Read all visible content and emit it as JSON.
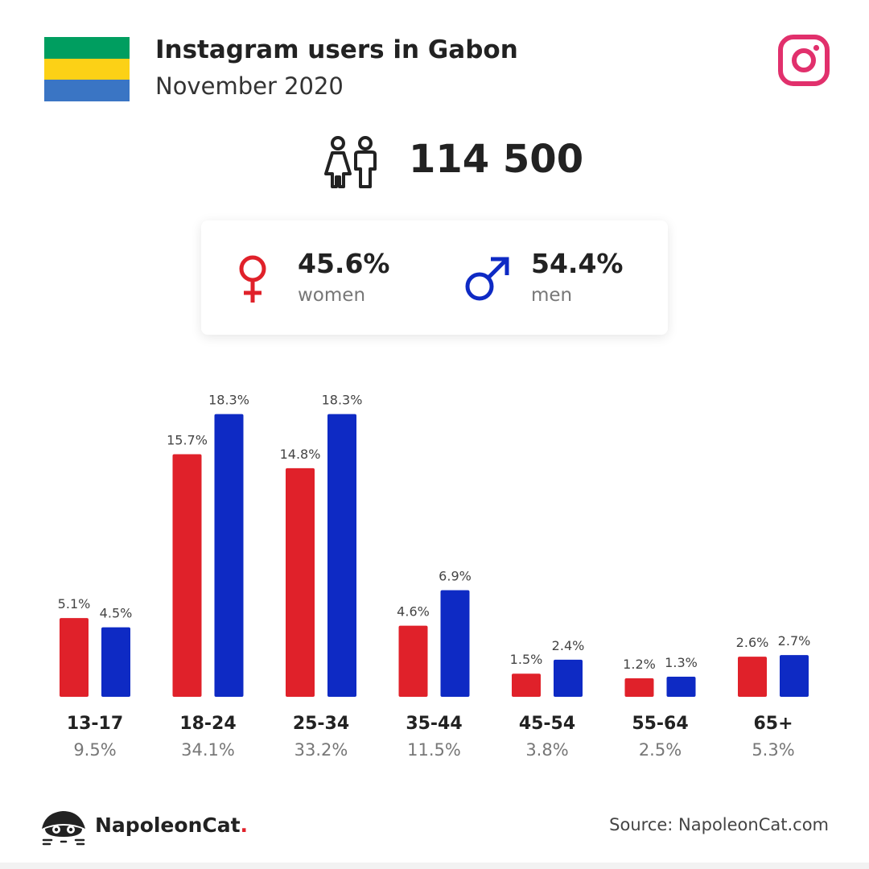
{
  "header": {
    "title": "Instagram users in Gabon",
    "subtitle": "November 2020",
    "flag_colors": [
      "#009e60",
      "#fcd116",
      "#3a75c4"
    ],
    "instagram_icon_color": "#e1306c"
  },
  "total": {
    "value": "114 500",
    "icon": "users-icon"
  },
  "gender": {
    "women": {
      "pct": "45.6%",
      "label": "women",
      "icon": "female-icon",
      "color": "#e0212a"
    },
    "men": {
      "pct": "54.4%",
      "label": "men",
      "icon": "male-icon",
      "color": "#0e2ac4"
    }
  },
  "chart_data": {
    "type": "bar",
    "categories": [
      "13-17",
      "18-24",
      "25-34",
      "35-44",
      "45-54",
      "55-64",
      "65+"
    ],
    "group_totals": [
      "9.5%",
      "34.1%",
      "33.2%",
      "11.5%",
      "3.8%",
      "2.5%",
      "5.3%"
    ],
    "series": [
      {
        "key": "women",
        "values": [
          5.1,
          15.7,
          14.8,
          4.6,
          1.5,
          1.2,
          2.6
        ],
        "color": "#e0212a"
      },
      {
        "key": "men",
        "values": [
          4.5,
          18.3,
          18.3,
          6.9,
          2.4,
          1.3,
          2.7
        ],
        "color": "#0e2ac4"
      }
    ],
    "value_suffix": "%",
    "title": "",
    "xlabel": "",
    "ylabel": "",
    "grid": false,
    "axis_visible": false
  },
  "footer": {
    "brand": "NapoleonCat",
    "brand_dot": ".",
    "source": "Source: NapoleonCat.com"
  }
}
